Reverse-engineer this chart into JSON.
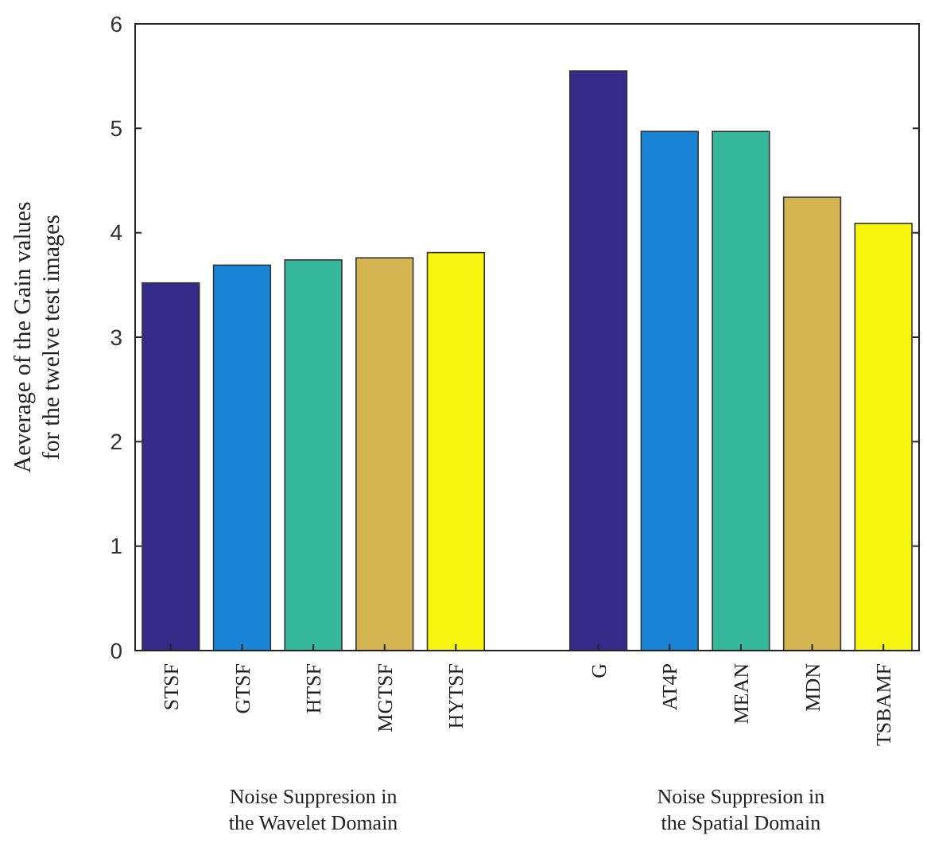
{
  "chart_data": {
    "type": "bar",
    "ylabel": "Aeverage of the Gain values\nfor the twelve test images",
    "categories": [
      "STSF",
      "GTSF",
      "HTSF",
      "MGTSF",
      "HYTSF",
      null,
      "G",
      "AT4P",
      "MEAN",
      "MDN",
      "TSBAMF"
    ],
    "values": [
      3.52,
      3.69,
      3.74,
      3.76,
      3.81,
      null,
      5.55,
      4.97,
      4.97,
      4.34,
      4.09
    ],
    "colors": [
      "#352a87",
      "#1a84d6",
      "#36b89b",
      "#d5b552",
      "#f7f50f",
      null,
      "#352a87",
      "#1a84d6",
      "#36b89b",
      "#d5b552",
      "#f7f50f"
    ],
    "ylim": [
      0,
      6
    ],
    "yticks": [
      0,
      1,
      2,
      3,
      4,
      5,
      6
    ],
    "annotations": [
      "Noise Suppresion in\nthe Wavelet Domain",
      "Noise Suppresion in\nthe Spatial Domain"
    ]
  }
}
